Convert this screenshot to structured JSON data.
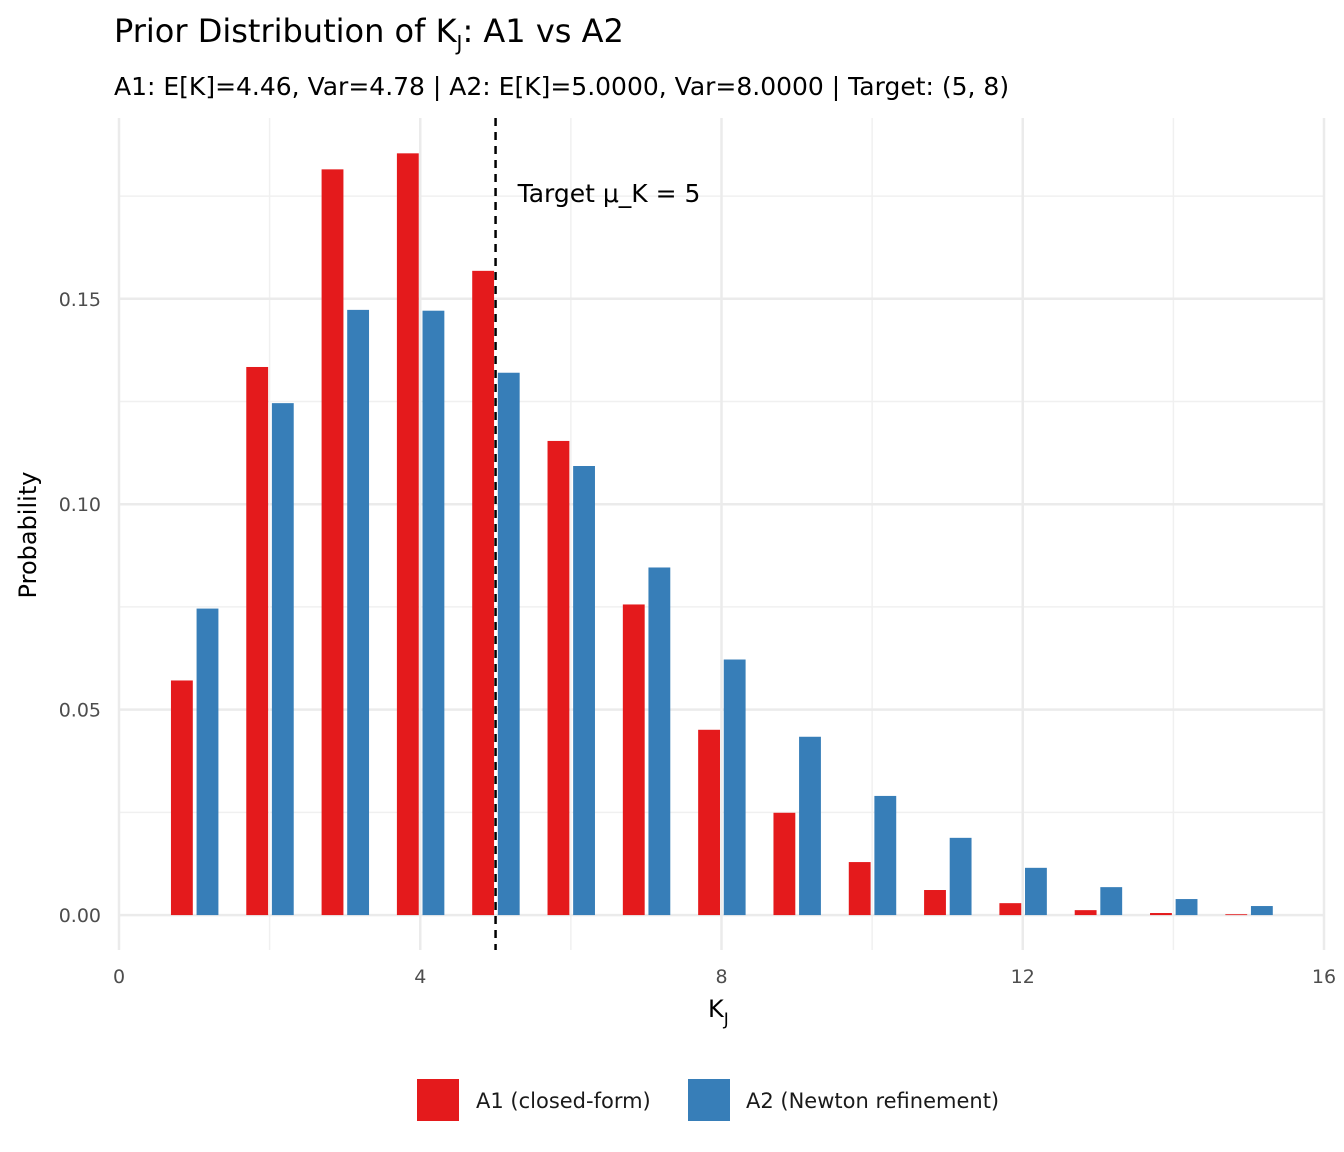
{
  "chart_data": {
    "type": "bar",
    "title": "Prior Distribution of K",
    "title_subscript": "J",
    "title_suffix": ": A1 vs A2",
    "subtitle": "A1: E[K]=4.46, Var=4.78 | A2: E[K]=5.0000, Var=8.0000 | Target: (5, 8)",
    "xlabel": "K",
    "xlabel_subscript": "J",
    "ylabel": "Probability",
    "xlim": [
      0,
      16
    ],
    "ylim": [
      -0.0085,
      0.194
    ],
    "xticks": [
      "0",
      "4",
      "8",
      "12",
      "16"
    ],
    "yticks": [
      "0.00",
      "0.05",
      "0.10",
      "0.15"
    ],
    "grid": true,
    "legend_position": "bottom",
    "categories": [
      1,
      2,
      3,
      4,
      5,
      6,
      7,
      8,
      9,
      10,
      11,
      12,
      13,
      14,
      15
    ],
    "series": [
      {
        "name": "A1 (closed-form)",
        "color": "#E41A1C",
        "values": [
          0.0571,
          0.1334,
          0.1815,
          0.1854,
          0.1568,
          0.1154,
          0.0756,
          0.0451,
          0.0249,
          0.0129,
          0.0061,
          0.0029,
          0.0012,
          0.0005,
          0.0002
        ]
      },
      {
        "name": "A2 (Newton refinement)",
        "color": "#377EB8",
        "values": [
          0.0746,
          0.1246,
          0.1473,
          0.1471,
          0.132,
          0.1093,
          0.0846,
          0.0622,
          0.0434,
          0.029,
          0.0188,
          0.0115,
          0.0068,
          0.0039,
          0.0022
        ]
      }
    ],
    "reference_line": {
      "x": 5,
      "style": "dashed",
      "color": "#000000",
      "label": "Target μ_K = 5"
    }
  }
}
